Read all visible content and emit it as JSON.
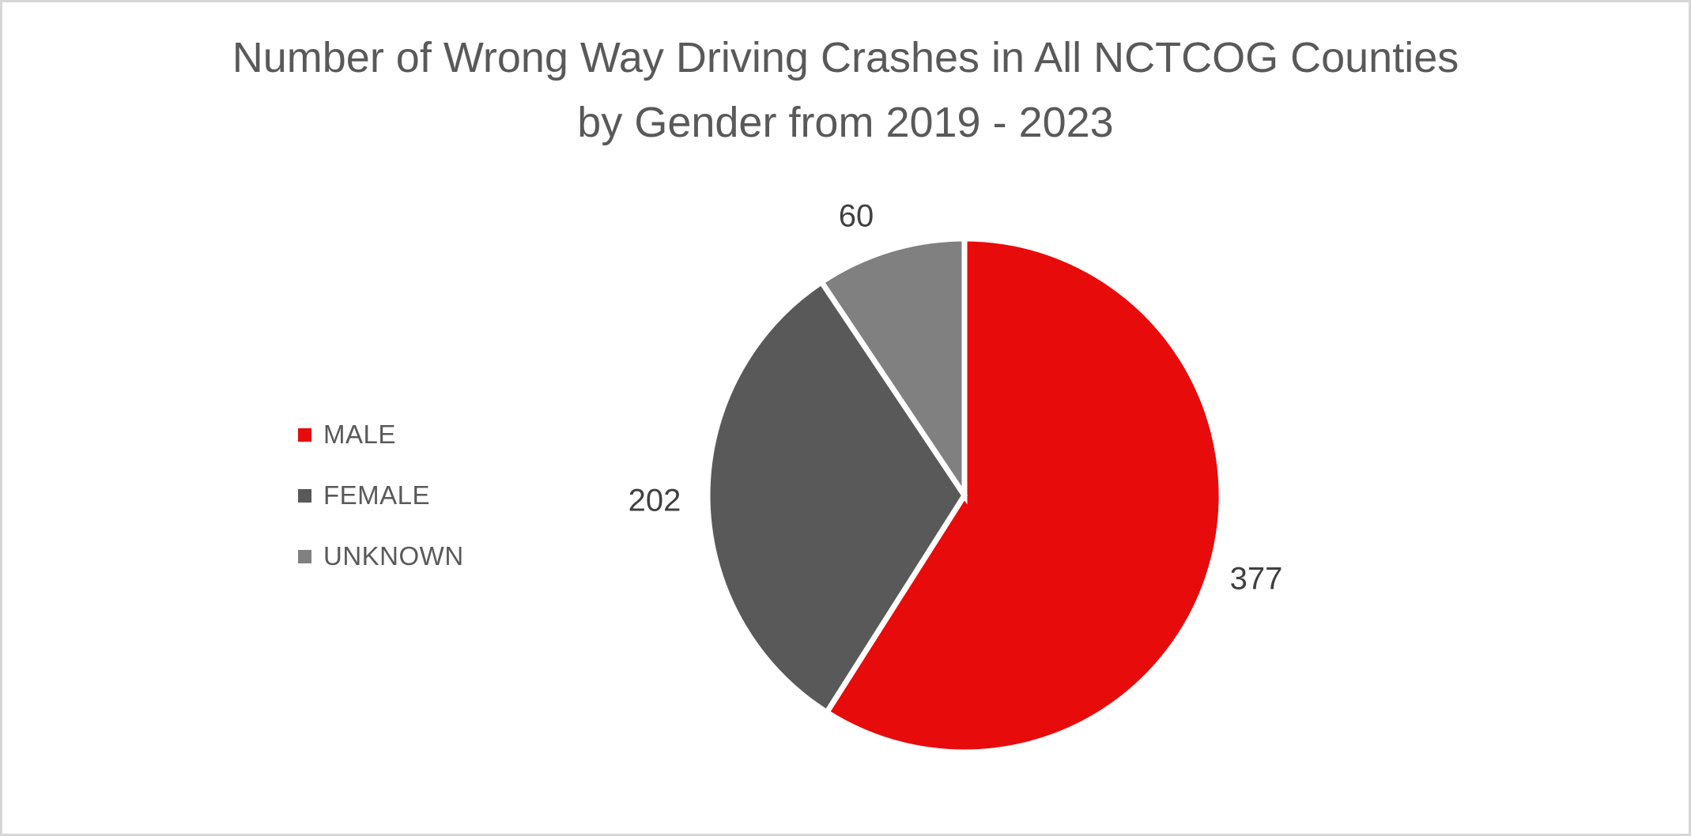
{
  "title": {
    "line1": "Number of Wrong Way Driving Crashes in All NCTCOG Counties",
    "line2": "by Gender from 2019 - 2023"
  },
  "chart_data": {
    "type": "pie",
    "title": "Number of Wrong Way Driving Crashes in All NCTCOG Counties by Gender from 2019 - 2023",
    "categories": [
      "MALE",
      "FEMALE",
      "UNKNOWN"
    ],
    "values": [
      377,
      202,
      60
    ],
    "colors": [
      "#E80B0B",
      "#595959",
      "#808080"
    ],
    "slice_border_color": "#FFFFFF",
    "start_angle_deg": 0,
    "direction": "clockwise",
    "legend_position": "left",
    "data_labels_position": "outside-end",
    "title_color": "#595959",
    "legend_text_color": "#595959",
    "data_label_color": "#404040",
    "frame_color": "#D6D6D6",
    "background_color": "#FFFFFF"
  }
}
